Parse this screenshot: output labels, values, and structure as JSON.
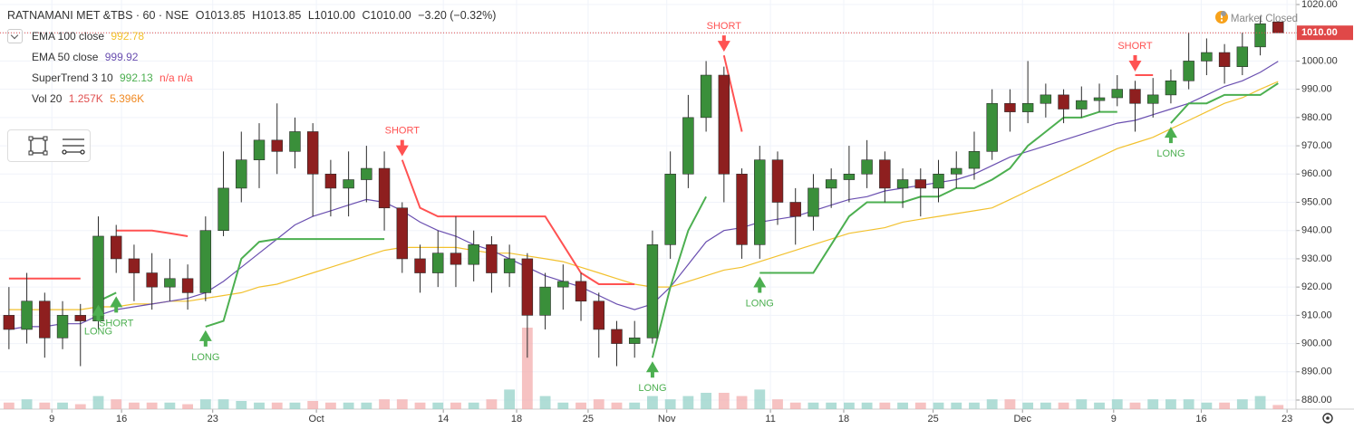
{
  "chart_data": {
    "type": "candlestick",
    "symbol": "RATNAMANI MET &TBS · 60 · NSE",
    "ohlc_header": {
      "open": "O1013.85",
      "high": "H1013.85",
      "low": "L1010.00",
      "close": "C1010.00",
      "change": "−3.20 (−0.32%)"
    },
    "status": "Market Closed",
    "up_color": "#3a8f3a",
    "down_color": "#8e1f1f",
    "open": [
      910,
      905,
      915,
      902,
      910,
      908,
      938,
      930,
      925,
      920,
      923,
      918,
      940,
      955,
      965,
      972,
      968,
      975,
      960,
      955,
      958,
      962,
      948,
      930,
      925,
      932,
      928,
      935,
      925,
      930,
      910,
      920,
      922,
      915,
      905,
      900,
      902,
      935,
      960,
      980,
      995,
      960,
      935,
      965,
      950,
      945,
      955,
      958,
      960,
      965,
      955,
      958,
      955,
      960,
      962,
      968,
      985,
      982,
      985,
      988,
      983,
      986,
      987,
      990,
      985,
      988,
      993,
      1000,
      1003,
      998,
      1005,
      1013.85
    ],
    "high": [
      920,
      925,
      918,
      915,
      914,
      945,
      942,
      935,
      932,
      930,
      928,
      945,
      968,
      975,
      978,
      985,
      980,
      978,
      965,
      968,
      970,
      968,
      950,
      935,
      940,
      945,
      940,
      938,
      935,
      932,
      925,
      928,
      925,
      918,
      908,
      908,
      940,
      968,
      988,
      1000,
      998,
      962,
      970,
      968,
      955,
      960,
      962,
      970,
      972,
      968,
      962,
      962,
      965,
      968,
      975,
      990,
      990,
      1000,
      992,
      990,
      991,
      992,
      995,
      993,
      994,
      997,
      1010,
      1008,
      1006,
      1010,
      1016,
      1013.85
    ],
    "low": [
      898,
      900,
      895,
      898,
      892,
      905,
      925,
      915,
      912,
      915,
      912,
      915,
      938,
      950,
      955,
      960,
      962,
      945,
      945,
      945,
      950,
      940,
      925,
      918,
      920,
      920,
      922,
      918,
      920,
      895,
      905,
      912,
      908,
      895,
      892,
      895,
      900,
      930,
      955,
      975,
      950,
      930,
      930,
      942,
      935,
      940,
      948,
      950,
      955,
      950,
      948,
      945,
      950,
      955,
      958,
      965,
      975,
      978,
      980,
      978,
      980,
      982,
      984,
      975,
      980,
      985,
      990,
      995,
      992,
      995,
      1002,
      1010
    ],
    "close": [
      905,
      915,
      902,
      910,
      908,
      938,
      930,
      925,
      920,
      923,
      918,
      940,
      955,
      965,
      972,
      968,
      975,
      960,
      955,
      958,
      962,
      948,
      930,
      925,
      932,
      928,
      935,
      925,
      930,
      910,
      920,
      922,
      915,
      905,
      900,
      902,
      935,
      960,
      980,
      995,
      960,
      935,
      965,
      950,
      945,
      955,
      958,
      960,
      965,
      955,
      958,
      955,
      960,
      962,
      968,
      985,
      982,
      985,
      988,
      983,
      986,
      987,
      990,
      985,
      988,
      993,
      1000,
      1003,
      998,
      1005,
      1013.2,
      1010
    ],
    "series": [
      {
        "name": "EMA 100 close",
        "color": "#f2c12e",
        "value_label": "992.78",
        "values": [
          912,
          912,
          912,
          912,
          912,
          913,
          913,
          914,
          914,
          915,
          915,
          916,
          917,
          918,
          920,
          921,
          923,
          925,
          927,
          929,
          931,
          933,
          934,
          934,
          934,
          934,
          933,
          932,
          932,
          931,
          930,
          929,
          927,
          925,
          923,
          921,
          920,
          920,
          922,
          924,
          926,
          927,
          929,
          931,
          933,
          935,
          937,
          939,
          940,
          941,
          943,
          944,
          945,
          946,
          947,
          948,
          951,
          954,
          957,
          960,
          963,
          966,
          969,
          971,
          973,
          976,
          979,
          982,
          985,
          987,
          990,
          992.78
        ]
      },
      {
        "name": "EMA 50 close",
        "color": "#6a4fb0",
        "value_label": "999.92",
        "values": [
          905,
          906,
          906,
          907,
          907,
          910,
          912,
          913,
          914,
          915,
          916,
          918,
          922,
          927,
          932,
          937,
          942,
          945,
          947,
          949,
          951,
          950,
          947,
          943,
          940,
          938,
          935,
          933,
          930,
          927,
          924,
          922,
          920,
          917,
          914,
          912,
          914,
          920,
          928,
          936,
          940,
          941,
          943,
          944,
          945,
          947,
          949,
          951,
          952,
          954,
          955,
          956,
          957,
          958,
          960,
          963,
          966,
          968,
          970,
          972,
          974,
          976,
          978,
          979,
          981,
          983,
          985,
          988,
          991,
          993,
          996,
          999.92
        ]
      }
    ],
    "supertrend": {
      "name": "SuperTrend 3 10",
      "value_label": "992.13",
      "extra_label": "n/a n/a",
      "up_color": "#4caf50",
      "down_color": "#ff5252",
      "up": [
        null,
        null,
        null,
        null,
        null,
        915,
        918,
        null,
        null,
        null,
        null,
        906,
        908,
        930,
        936,
        937,
        937,
        937,
        937,
        937,
        937,
        937,
        null,
        null,
        null,
        null,
        null,
        null,
        null,
        null,
        null,
        null,
        null,
        null,
        null,
        null,
        895,
        920,
        940,
        952,
        null,
        null,
        925,
        925,
        925,
        925,
        935,
        945,
        950,
        950,
        950,
        952,
        952,
        955,
        955,
        958,
        962,
        970,
        975,
        980,
        980,
        982,
        982,
        null,
        null,
        978,
        985,
        985,
        988,
        988,
        988,
        992.13
      ],
      "down": [
        923,
        923,
        923,
        923,
        923,
        null,
        940,
        940,
        940,
        939,
        938,
        null,
        null,
        null,
        null,
        null,
        null,
        null,
        null,
        null,
        null,
        null,
        965,
        948,
        945,
        945,
        945,
        945,
        945,
        945,
        945,
        935,
        925,
        921,
        921,
        921,
        null,
        null,
        null,
        null,
        1002,
        975,
        null,
        null,
        null,
        null,
        null,
        null,
        null,
        null,
        null,
        null,
        null,
        null,
        null,
        null,
        null,
        null,
        null,
        null,
        null,
        null,
        null,
        995,
        995,
        null,
        null,
        null,
        null,
        null,
        null,
        null
      ]
    },
    "signals": [
      {
        "index": 5,
        "label": "LONG"
      },
      {
        "index": 6,
        "label": "SHORT"
      },
      {
        "index": 11,
        "label": "LONG"
      },
      {
        "index": 22,
        "label": "SHORT"
      },
      {
        "index": 36,
        "label": "LONG"
      },
      {
        "index": 40,
        "label": "SHORT"
      },
      {
        "index": 42,
        "label": "LONG"
      },
      {
        "index": 63,
        "label": "SHORT"
      },
      {
        "index": 65,
        "label": "LONG"
      }
    ],
    "volume": {
      "name": "Vol 20",
      "last_label": "1.257K",
      "ma_label": "5.396K",
      "values": [
        2,
        3,
        2,
        2,
        1.5,
        4,
        3,
        2,
        2,
        2,
        1.5,
        3,
        3,
        2.5,
        2,
        2,
        2,
        2.5,
        2,
        2,
        2,
        3,
        3,
        2,
        2,
        2,
        2,
        3,
        6,
        25,
        4,
        2,
        2,
        3,
        2,
        2,
        4,
        3,
        4,
        5,
        5,
        4,
        6,
        3,
        2,
        2,
        2,
        2,
        2,
        2,
        2,
        2,
        2,
        2,
        2,
        3,
        3,
        2,
        2,
        2,
        3,
        2,
        3,
        2,
        3,
        3,
        3,
        2,
        2,
        3,
        4,
        1.257
      ]
    },
    "last_price": {
      "value": 1010,
      "label": "1010.00"
    },
    "xlim": [
      -0.5,
      72
    ],
    "xticks": [
      {
        "value": 2.4,
        "label": "9"
      },
      {
        "value": 6.3,
        "label": "16"
      },
      {
        "value": 11.4,
        "label": "23"
      },
      {
        "value": 17.2,
        "label": "Oct"
      },
      {
        "value": 24.3,
        "label": "14"
      },
      {
        "value": 28.4,
        "label": "18"
      },
      {
        "value": 32.4,
        "label": "25"
      },
      {
        "value": 36.8,
        "label": "Nov"
      },
      {
        "value": 42.6,
        "label": "11"
      },
      {
        "value": 46.7,
        "label": "18"
      },
      {
        "value": 51.7,
        "label": "25"
      },
      {
        "value": 56.7,
        "label": "Dec"
      },
      {
        "value": 61.8,
        "label": "9"
      },
      {
        "value": 66.7,
        "label": "16"
      },
      {
        "value": 71.5,
        "label": "23"
      }
    ],
    "ylim": [
      876.8,
      1021.6
    ],
    "yticks": [
      {
        "value": 880,
        "label": "880.00"
      },
      {
        "value": 890,
        "label": "890.00"
      },
      {
        "value": 900,
        "label": "900.00"
      },
      {
        "value": 910,
        "label": "910.00"
      },
      {
        "value": 920,
        "label": "920.00"
      },
      {
        "value": 930,
        "label": "930.00"
      },
      {
        "value": 940,
        "label": "940.00"
      },
      {
        "value": 950,
        "label": "950.00"
      },
      {
        "value": 960,
        "label": "960.00"
      },
      {
        "value": 970,
        "label": "970.00"
      },
      {
        "value": 980,
        "label": "980.00"
      },
      {
        "value": 990,
        "label": "990.00"
      },
      {
        "value": 1000,
        "label": "1000.00"
      },
      {
        "value": 1010,
        "label": "1010.00"
      },
      {
        "value": 1020,
        "label": "1020.00"
      }
    ],
    "grid": true
  }
}
